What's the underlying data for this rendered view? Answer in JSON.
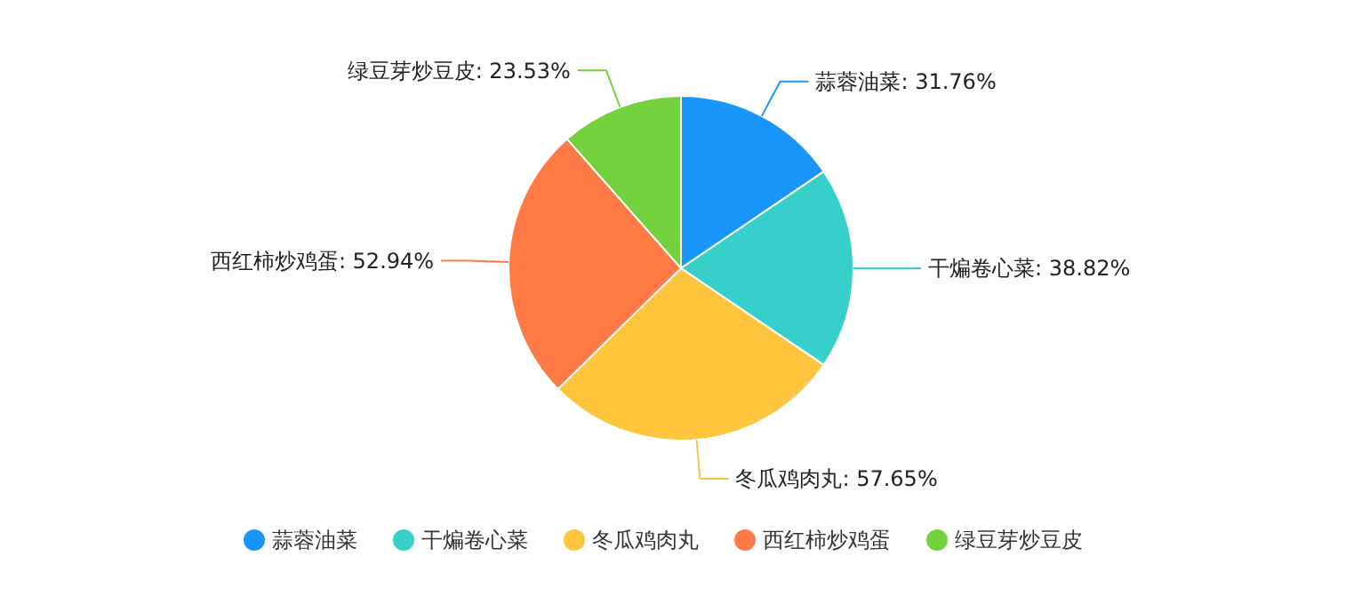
{
  "chart_data": {
    "type": "pie",
    "categories": [
      "蒜蓉油菜",
      "干煸卷心菜",
      "冬瓜鸡肉丸",
      "西红柿炒鸡蛋",
      "绿豆芽炒豆皮"
    ],
    "values": [
      31.76,
      38.82,
      57.65,
      52.94,
      23.53
    ],
    "value_labels": [
      "蒜蓉油菜: 31.76%",
      "干煸卷心菜: 38.82%",
      "冬瓜鸡肉丸: 57.65%",
      "西红柿炒鸡蛋: 52.94%",
      "绿豆芽炒豆皮: 23.53%"
    ],
    "colors": [
      "#1896fb",
      "#36cfc9",
      "#ffc53d",
      "#ff7a45",
      "#73d13d"
    ],
    "legend": "bottom"
  }
}
